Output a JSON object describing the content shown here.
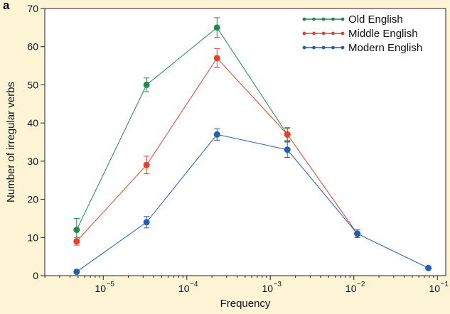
{
  "panel_label": "a",
  "chart_data": {
    "type": "line",
    "title": "",
    "xlabel": "Frequency",
    "ylabel": "Number of irregular verbs",
    "x_scale": "log",
    "x_ticks": [
      {
        "value": 1e-05,
        "label": "10",
        "exp": "−5"
      },
      {
        "value": 0.0001,
        "label": "10",
        "exp": "−4"
      },
      {
        "value": 0.001,
        "label": "10",
        "exp": "−3"
      },
      {
        "value": 0.01,
        "label": "10",
        "exp": "−2"
      },
      {
        "value": 0.1,
        "label": "10",
        "exp": "−1"
      }
    ],
    "y_ticks": [
      0,
      10,
      20,
      30,
      40,
      50,
      60,
      70
    ],
    "ylim": [
      0,
      70
    ],
    "xlim_log10": [
      -5.7,
      -0.9
    ],
    "grid": false,
    "legend_position": "top-right",
    "series": [
      {
        "name": "Old English",
        "color": "#1f8a4c",
        "points": [
          {
            "x": 4.8e-06,
            "y": 12,
            "err": 3
          },
          {
            "x": 3.3e-05,
            "y": 50,
            "err": 1.8
          },
          {
            "x": 0.00023,
            "y": 65,
            "err": 2.6
          },
          {
            "x": 0.0016,
            "y": 37,
            "err": 1.6
          }
        ]
      },
      {
        "name": "Middle English",
        "color": "#e8402a",
        "points": [
          {
            "x": 4.8e-06,
            "y": 9,
            "err": 1
          },
          {
            "x": 3.3e-05,
            "y": 29,
            "err": 2.3
          },
          {
            "x": 0.00023,
            "y": 57,
            "err": 2.5
          },
          {
            "x": 0.0016,
            "y": 37,
            "err": 1.8
          },
          {
            "x": 0.011,
            "y": 11,
            "err": 1
          }
        ]
      },
      {
        "name": "Modern English",
        "color": "#1f5fb5",
        "points": [
          {
            "x": 4.8e-06,
            "y": 1,
            "err": 0
          },
          {
            "x": 3.3e-05,
            "y": 14,
            "err": 1.5
          },
          {
            "x": 0.00023,
            "y": 37,
            "err": 1.5
          },
          {
            "x": 0.0016,
            "y": 33,
            "err": 2
          },
          {
            "x": 0.011,
            "y": 11,
            "err": 1
          },
          {
            "x": 0.078,
            "y": 2,
            "err": 0
          }
        ]
      }
    ]
  }
}
